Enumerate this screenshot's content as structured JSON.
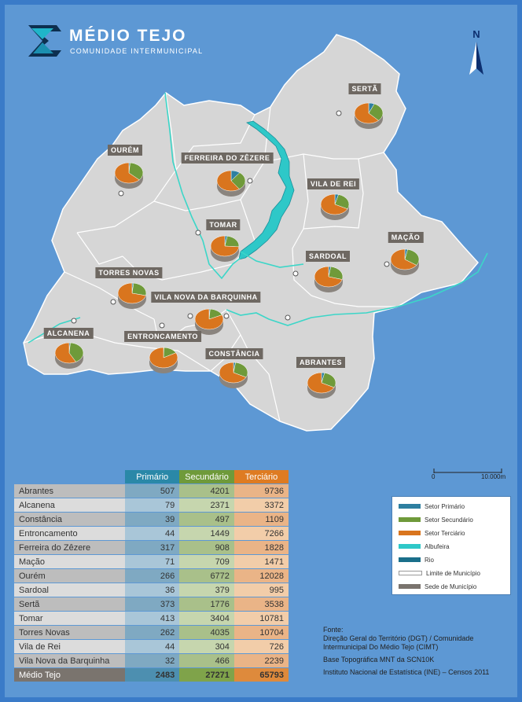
{
  "header": {
    "title": "MÉDIO TEJO",
    "subtitle": "COMUNIDADE INTERMUNICIPAL"
  },
  "north": {
    "label": "N"
  },
  "colors": {
    "primario": "#2e7fa0",
    "secundario": "#6f9a3a",
    "terciario": "#d9751e",
    "albufeira": "#2ec8c8",
    "rio": "#1a6f8a",
    "map_fill": "#d6d6d6"
  },
  "municipalities": [
    {
      "name": "SERTÃ"
    },
    {
      "name": "OURÉM"
    },
    {
      "name": "FERREIRA DO ZÊZERE"
    },
    {
      "name": "VILA DE REI"
    },
    {
      "name": "TOMAR"
    },
    {
      "name": "MAÇÃO"
    },
    {
      "name": "SARDOAL"
    },
    {
      "name": "TORRES NOVAS"
    },
    {
      "name": "VILA NOVA DA BARQUINHA"
    },
    {
      "name": "ALCANENA"
    },
    {
      "name": "ENTRONCAMENTO"
    },
    {
      "name": "CONSTÂNCIA"
    },
    {
      "name": "ABRANTES"
    }
  ],
  "table": {
    "headers": [
      "Primário",
      "Secundário",
      "Terciário"
    ],
    "rows": [
      {
        "name": "Abrantes",
        "p": "507",
        "s": "4201",
        "t": "9736"
      },
      {
        "name": "Alcanena",
        "p": "79",
        "s": "2371",
        "t": "3372"
      },
      {
        "name": "Constância",
        "p": "39",
        "s": "497",
        "t": "1109"
      },
      {
        "name": "Entroncamento",
        "p": "44",
        "s": "1449",
        "t": "7266"
      },
      {
        "name": "Ferreira do Zêzere",
        "p": "317",
        "s": "908",
        "t": "1828"
      },
      {
        "name": "Mação",
        "p": "71",
        "s": "709",
        "t": "1471"
      },
      {
        "name": "Ourém",
        "p": "266",
        "s": "6772",
        "t": "12028"
      },
      {
        "name": "Sardoal",
        "p": "36",
        "s": "379",
        "t": "995"
      },
      {
        "name": "Sertã",
        "p": "373",
        "s": "1776",
        "t": "3538"
      },
      {
        "name": "Tomar",
        "p": "413",
        "s": "3404",
        "t": "10781"
      },
      {
        "name": "Torres Novas",
        "p": "262",
        "s": "4035",
        "t": "10704"
      },
      {
        "name": "Vila de Rei",
        "p": "44",
        "s": "304",
        "t": "726"
      },
      {
        "name": "Vila Nova da Barquinha",
        "p": "32",
        "s": "466",
        "t": "2239"
      }
    ],
    "total": {
      "name": "Médio Tejo",
      "p": "2483",
      "s": "27271",
      "t": "65793"
    }
  },
  "scale": {
    "start": "0",
    "end": "10.000m"
  },
  "legend": {
    "items": [
      {
        "label": "Setor Primário"
      },
      {
        "label": "Setor Secundário"
      },
      {
        "label": "Setor Terciário"
      },
      {
        "label": "Albufeira"
      },
      {
        "label": "Rio"
      },
      {
        "label": "Limite de Município"
      },
      {
        "label": "Sede de Município"
      }
    ]
  },
  "source": {
    "title": "Fonte:",
    "line1": "Direção Geral do Território (DGT) / Comunidade Intermunicipal Do Médio Tejo (CIMT)",
    "line2": "Base Topográfica MNT da SCN10K",
    "line3": "Instituto Nacional de Estatística (INE) – Censos 2011"
  }
}
